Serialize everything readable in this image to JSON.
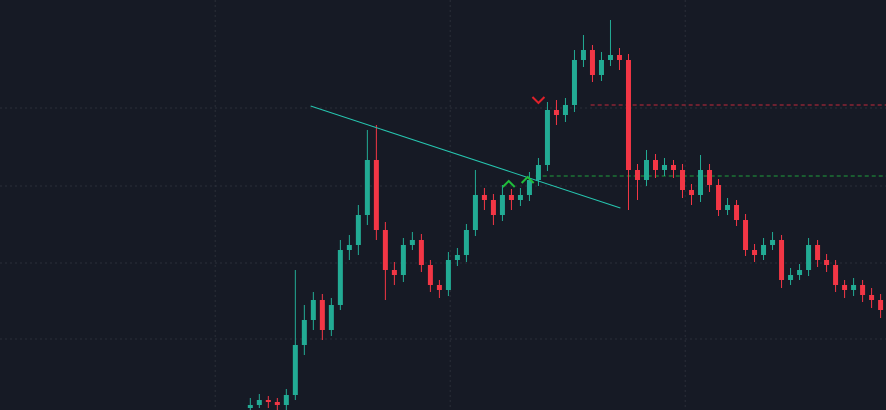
{
  "chart_data": {
    "type": "candlestick",
    "up_color": "#22ab94",
    "down_color": "#f23645",
    "background": "#161a25",
    "grid": true,
    "xlim": [
      -27.8,
      70.6
    ],
    "ylim": [
      0,
      410
    ],
    "xticks": [
      -3.9,
      22.2,
      48.3
    ],
    "yticks": [
      71,
      147,
      224,
      302
    ],
    "candles": [
      [
        2,
        12,
        0,
        5
      ],
      [
        5,
        16,
        2,
        10
      ],
      [
        10,
        14,
        2,
        8
      ],
      [
        8,
        12,
        0,
        5
      ],
      [
        5,
        21,
        0,
        15
      ],
      [
        15,
        140,
        10,
        65
      ],
      [
        65,
        105,
        55,
        90
      ],
      [
        90,
        118,
        80,
        110
      ],
      [
        110,
        116,
        70,
        80
      ],
      [
        80,
        112,
        74,
        105
      ],
      [
        105,
        170,
        100,
        160
      ],
      [
        160,
        175,
        150,
        165
      ],
      [
        165,
        205,
        155,
        195
      ],
      [
        195,
        280,
        185,
        250
      ],
      [
        250,
        285,
        170,
        180
      ],
      [
        180,
        188,
        110,
        140
      ],
      [
        140,
        148,
        125,
        135
      ],
      [
        135,
        172,
        128,
        165
      ],
      [
        165,
        178,
        160,
        170
      ],
      [
        170,
        176,
        138,
        145
      ],
      [
        145,
        150,
        118,
        125
      ],
      [
        125,
        130,
        112,
        120
      ],
      [
        120,
        158,
        114,
        150
      ],
      [
        150,
        162,
        144,
        155
      ],
      [
        155,
        186,
        148,
        180
      ],
      [
        180,
        240,
        174,
        215
      ],
      [
        215,
        222,
        200,
        210
      ],
      [
        210,
        216,
        185,
        195
      ],
      [
        195,
        225,
        189,
        215
      ],
      [
        215,
        221,
        200,
        210
      ],
      [
        210,
        222,
        204,
        215
      ],
      [
        215,
        238,
        209,
        230
      ],
      [
        230,
        252,
        224,
        245
      ],
      [
        245,
        308,
        239,
        300
      ],
      [
        300,
        310,
        285,
        295
      ],
      [
        295,
        312,
        288,
        305
      ],
      [
        305,
        360,
        298,
        350
      ],
      [
        350,
        375,
        343,
        360
      ],
      [
        360,
        365,
        328,
        335
      ],
      [
        335,
        358,
        329,
        350
      ],
      [
        350,
        390,
        344,
        355
      ],
      [
        355,
        362,
        340,
        350
      ],
      [
        350,
        356,
        200,
        240
      ],
      [
        240,
        246,
        210,
        230
      ],
      [
        230,
        260,
        224,
        250
      ],
      [
        250,
        256,
        232,
        240
      ],
      [
        240,
        252,
        234,
        245
      ],
      [
        245,
        250,
        232,
        240
      ],
      [
        240,
        246,
        212,
        220
      ],
      [
        220,
        226,
        205,
        215
      ],
      [
        215,
        255,
        208,
        240
      ],
      [
        240,
        246,
        218,
        225
      ],
      [
        225,
        231,
        194,
        200
      ],
      [
        200,
        212,
        195,
        205
      ],
      [
        205,
        210,
        184,
        190
      ],
      [
        190,
        196,
        154,
        160
      ],
      [
        160,
        166,
        148,
        155
      ],
      [
        155,
        172,
        150,
        165
      ],
      [
        165,
        178,
        160,
        170
      ],
      [
        170,
        175,
        122,
        130
      ],
      [
        130,
        142,
        125,
        135
      ],
      [
        135,
        146,
        130,
        140
      ],
      [
        140,
        172,
        134,
        165
      ],
      [
        165,
        170,
        143,
        150
      ],
      [
        150,
        156,
        138,
        145
      ],
      [
        145,
        150,
        118,
        125
      ],
      [
        125,
        130,
        112,
        120
      ],
      [
        120,
        132,
        114,
        125
      ],
      [
        125,
        130,
        108,
        115
      ],
      [
        115,
        122,
        102,
        110
      ],
      [
        110,
        116,
        92,
        100
      ]
    ],
    "trendline": {
      "x": [
        6.7,
        41.1
      ],
      "y": [
        304,
        202
      ],
      "color": "#26c6b0"
    },
    "levels": [
      {
        "value": 305,
        "start": 37.8,
        "color": "#c2283a"
      },
      {
        "value": 234,
        "start": 31.7,
        "color": "#1f9d3a"
      }
    ],
    "markers": [
      {
        "x": 28.7,
        "y": 228,
        "dir": "up",
        "color": "#1fbf3a"
      },
      {
        "x": 30.8,
        "y": 232,
        "dir": "up",
        "color": "#1fbf3a"
      },
      {
        "x": 32,
        "y": 308,
        "dir": "down",
        "color": "#e0202a"
      }
    ]
  }
}
